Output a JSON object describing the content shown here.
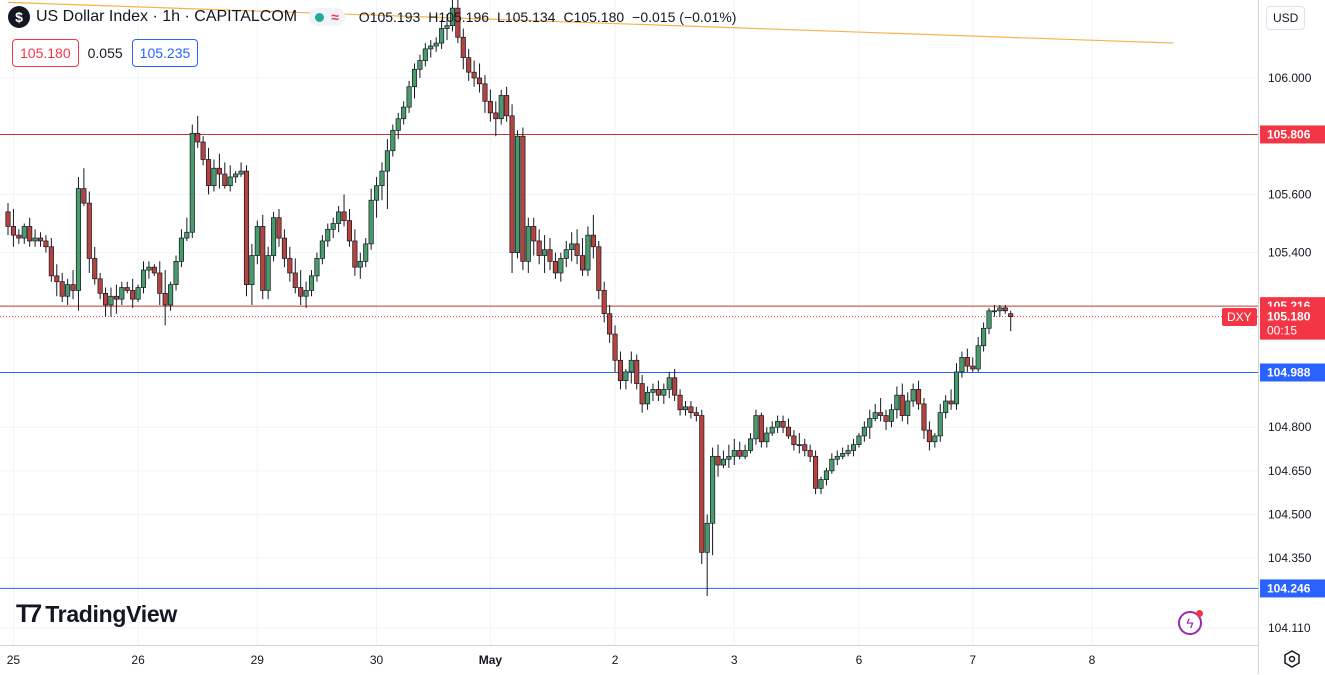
{
  "header": {
    "symbol_icon": "$",
    "title": "US Dollar Index · 1h · CAPITALCOM",
    "ohlc": [
      {
        "k": "O",
        "v": "105.193"
      },
      {
        "k": "H",
        "v": "105.196"
      },
      {
        "k": "L",
        "v": "105.134"
      },
      {
        "k": "C",
        "v": "105.180"
      },
      {
        "k": "",
        "v": "−0.015 (−0.01%)"
      }
    ],
    "status_icons": [
      "market-open-dot-icon",
      "wave-icon"
    ]
  },
  "quote": {
    "bid": "105.180",
    "spread": "0.055",
    "ask": "105.235"
  },
  "currency": "USD",
  "logo_text": "TradingView",
  "symbol_tag": "DXY",
  "colors": {
    "up": "#22ab94",
    "down": "#f23645",
    "candle_up_fill": "#4a9b6b",
    "candle_down_fill": "#b5443f",
    "blue_line": "#2962ff",
    "red_line": "#c0392b",
    "trend": "#f7b24f"
  },
  "chart_data": {
    "type": "candlestick",
    "title": "US Dollar Index · 1h · CAPITALCOM",
    "y_ticks": [
      "106.000",
      "105.600",
      "105.400",
      "104.800",
      "104.650",
      "104.500",
      "104.350",
      "104.110"
    ],
    "x_ticks": [
      {
        "label": "25",
        "idx": 1
      },
      {
        "label": "26",
        "idx": 24
      },
      {
        "label": "29",
        "idx": 46
      },
      {
        "label": "30",
        "idx": 68
      },
      {
        "label": "May",
        "idx": 89
      },
      {
        "label": "2",
        "idx": 112
      },
      {
        "label": "3",
        "idx": 134
      },
      {
        "label": "6",
        "idx": 157
      },
      {
        "label": "7",
        "idx": 178
      },
      {
        "label": "8",
        "idx": 200
      }
    ],
    "horizontal_lines": [
      {
        "price": 105.806,
        "label": "105.806",
        "color": "#c0392b"
      },
      {
        "price": 105.216,
        "label": "105.216",
        "color": "#c0392b"
      },
      {
        "price": 104.988,
        "label": "104.988",
        "color": "#2962ff"
      },
      {
        "price": 104.246,
        "label": "104.246",
        "color": "#2962ff"
      }
    ],
    "current_price": {
      "price": 105.18,
      "label": "105.180",
      "countdown": "00:15"
    },
    "trendline": {
      "from": {
        "idx": 0,
        "price": 106.26
      },
      "to": {
        "idx": 215,
        "price": 106.12
      }
    },
    "candles": [
      [
        105.54,
        105.57,
        105.46,
        105.49
      ],
      [
        105.49,
        105.55,
        105.42,
        105.46
      ],
      [
        105.46,
        105.48,
        105.43,
        105.45
      ],
      [
        105.45,
        105.5,
        105.43,
        105.49
      ],
      [
        105.49,
        105.52,
        105.42,
        105.44
      ],
      [
        105.44,
        105.48,
        105.42,
        105.45
      ],
      [
        105.45,
        105.47,
        105.42,
        105.44
      ],
      [
        105.44,
        105.46,
        105.4,
        105.42
      ],
      [
        105.42,
        105.45,
        105.3,
        105.32
      ],
      [
        105.32,
        105.36,
        105.25,
        105.3
      ],
      [
        105.3,
        105.33,
        105.23,
        105.25
      ],
      [
        105.25,
        105.31,
        105.22,
        105.29
      ],
      [
        105.29,
        105.34,
        105.24,
        105.27
      ],
      [
        105.27,
        105.66,
        105.2,
        105.62
      ],
      [
        105.62,
        105.69,
        105.56,
        105.57
      ],
      [
        105.57,
        105.61,
        105.33,
        105.38
      ],
      [
        105.38,
        105.42,
        105.29,
        105.31
      ],
      [
        105.31,
        105.33,
        105.24,
        105.26
      ],
      [
        105.26,
        105.28,
        105.18,
        105.22
      ],
      [
        105.22,
        105.28,
        105.18,
        105.25
      ],
      [
        105.25,
        105.29,
        105.19,
        105.24
      ],
      [
        105.24,
        105.3,
        105.22,
        105.28
      ],
      [
        105.28,
        105.3,
        105.26,
        105.27
      ],
      [
        105.27,
        105.31,
        105.21,
        105.24
      ],
      [
        105.24,
        105.29,
        105.23,
        105.28
      ],
      [
        105.28,
        105.37,
        105.26,
        105.34
      ],
      [
        105.34,
        105.37,
        105.31,
        105.35
      ],
      [
        105.35,
        105.36,
        105.32,
        105.33
      ],
      [
        105.33,
        105.37,
        105.22,
        105.26
      ],
      [
        105.26,
        105.34,
        105.15,
        105.22
      ],
      [
        105.22,
        105.3,
        105.2,
        105.29
      ],
      [
        105.29,
        105.39,
        105.27,
        105.37
      ],
      [
        105.37,
        105.48,
        105.35,
        105.45
      ],
      [
        105.45,
        105.52,
        105.44,
        105.47
      ],
      [
        105.47,
        105.84,
        105.45,
        105.81
      ],
      [
        105.81,
        105.87,
        105.76,
        105.78
      ],
      [
        105.78,
        105.8,
        105.7,
        105.72
      ],
      [
        105.72,
        105.76,
        105.6,
        105.63
      ],
      [
        105.63,
        105.72,
        105.61,
        105.69
      ],
      [
        105.69,
        105.74,
        105.62,
        105.67
      ],
      [
        105.67,
        105.71,
        105.62,
        105.63
      ],
      [
        105.63,
        105.7,
        105.61,
        105.66
      ],
      [
        105.66,
        105.68,
        105.64,
        105.67
      ],
      [
        105.67,
        105.71,
        105.66,
        105.68
      ],
      [
        105.68,
        105.7,
        105.25,
        105.29
      ],
      [
        105.29,
        105.43,
        105.22,
        105.39
      ],
      [
        105.39,
        105.51,
        105.36,
        105.49
      ],
      [
        105.49,
        105.53,
        105.24,
        105.27
      ],
      [
        105.27,
        105.42,
        105.24,
        105.39
      ],
      [
        105.39,
        105.54,
        105.37,
        105.52
      ],
      [
        105.52,
        105.55,
        105.42,
        105.45
      ],
      [
        105.45,
        105.48,
        105.35,
        105.38
      ],
      [
        105.38,
        105.42,
        105.3,
        105.33
      ],
      [
        105.33,
        105.38,
        105.26,
        105.28
      ],
      [
        105.28,
        105.34,
        105.22,
        105.25
      ],
      [
        105.25,
        105.3,
        105.21,
        105.27
      ],
      [
        105.27,
        105.34,
        105.25,
        105.32
      ],
      [
        105.32,
        105.4,
        105.3,
        105.38
      ],
      [
        105.38,
        105.46,
        105.36,
        105.44
      ],
      [
        105.44,
        105.5,
        105.42,
        105.48
      ],
      [
        105.48,
        105.52,
        105.45,
        105.5
      ],
      [
        105.5,
        105.56,
        105.47,
        105.54
      ],
      [
        105.54,
        105.6,
        105.49,
        105.51
      ],
      [
        105.51,
        105.55,
        105.42,
        105.44
      ],
      [
        105.44,
        105.48,
        105.32,
        105.35
      ],
      [
        105.35,
        105.4,
        105.31,
        105.37
      ],
      [
        105.37,
        105.45,
        105.35,
        105.43
      ],
      [
        105.43,
        105.62,
        105.41,
        105.58
      ],
      [
        105.58,
        105.66,
        105.52,
        105.63
      ],
      [
        105.63,
        105.71,
        105.58,
        105.68
      ],
      [
        105.68,
        105.79,
        105.55,
        105.75
      ],
      [
        105.75,
        105.84,
        105.73,
        105.82
      ],
      [
        105.82,
        105.88,
        105.79,
        105.86
      ],
      [
        105.86,
        105.92,
        105.84,
        105.9
      ],
      [
        105.9,
        105.99,
        105.88,
        105.97
      ],
      [
        105.97,
        106.05,
        105.93,
        106.03
      ],
      [
        106.03,
        106.08,
        106.0,
        106.06
      ],
      [
        106.06,
        106.12,
        106.04,
        106.1
      ],
      [
        106.1,
        106.13,
        106.07,
        106.11
      ],
      [
        106.11,
        106.14,
        106.09,
        106.12
      ],
      [
        106.12,
        106.2,
        106.1,
        106.17
      ],
      [
        106.17,
        106.22,
        106.13,
        106.18
      ],
      [
        106.18,
        106.27,
        106.16,
        106.24
      ],
      [
        106.24,
        106.28,
        106.12,
        106.14
      ],
      [
        106.14,
        106.17,
        106.03,
        106.07
      ],
      [
        106.07,
        106.1,
        105.99,
        106.02
      ],
      [
        106.02,
        106.06,
        105.97,
        106.0
      ],
      [
        106.0,
        106.05,
        105.95,
        105.98
      ],
      [
        105.98,
        106.01,
        105.88,
        105.92
      ],
      [
        105.92,
        105.96,
        105.85,
        105.88
      ],
      [
        105.88,
        105.92,
        105.8,
        105.86
      ],
      [
        105.86,
        105.96,
        105.84,
        105.94
      ],
      [
        105.94,
        105.97,
        105.85,
        105.87
      ],
      [
        105.87,
        105.91,
        105.33,
        105.4
      ],
      [
        105.4,
        105.82,
        105.38,
        105.8
      ],
      [
        105.8,
        105.83,
        105.34,
        105.37
      ],
      [
        105.37,
        105.52,
        105.33,
        105.49
      ],
      [
        105.49,
        105.52,
        105.39,
        105.44
      ],
      [
        105.44,
        105.48,
        105.36,
        105.39
      ],
      [
        105.39,
        105.46,
        105.33,
        105.41
      ],
      [
        105.41,
        105.45,
        105.34,
        105.37
      ],
      [
        105.37,
        105.4,
        105.31,
        105.33
      ],
      [
        105.33,
        105.4,
        105.3,
        105.38
      ],
      [
        105.38,
        105.44,
        105.35,
        105.41
      ],
      [
        105.41,
        105.47,
        105.37,
        105.43
      ],
      [
        105.43,
        105.48,
        105.36,
        105.39
      ],
      [
        105.39,
        105.45,
        105.32,
        105.34
      ],
      [
        105.34,
        105.49,
        105.32,
        105.46
      ],
      [
        105.46,
        105.53,
        105.38,
        105.42
      ]
    ],
    "candles_b": [
      [
        105.42,
        105.44,
        105.24,
        105.27
      ],
      [
        105.27,
        105.3,
        105.16,
        105.19
      ],
      [
        105.19,
        105.22,
        105.09,
        105.12
      ],
      [
        105.12,
        105.15,
        104.99,
        105.03
      ],
      [
        105.03,
        105.06,
        104.93,
        104.96
      ],
      [
        104.96,
        105.0,
        104.93,
        104.99
      ],
      [
        104.99,
        105.06,
        104.95,
        105.03
      ],
      [
        105.03,
        105.05,
        104.93,
        104.95
      ],
      [
        104.95,
        104.98,
        104.85,
        104.88
      ],
      [
        104.88,
        104.94,
        104.86,
        104.92
      ],
      [
        104.92,
        104.95,
        104.89,
        104.93
      ],
      [
        104.93,
        104.96,
        104.89,
        104.91
      ],
      [
        104.91,
        104.95,
        104.88,
        104.93
      ],
      [
        104.93,
        104.99,
        104.9,
        104.97
      ],
      [
        104.97,
        105.0,
        104.89,
        104.91
      ],
      [
        104.91,
        104.93,
        104.84,
        104.86
      ],
      [
        104.86,
        104.89,
        104.84,
        104.87
      ],
      [
        104.87,
        104.89,
        104.83,
        104.85
      ],
      [
        104.85,
        104.87,
        104.82,
        104.84
      ],
      [
        104.84,
        104.86,
        104.33,
        104.37
      ],
      [
        104.37,
        104.5,
        104.22,
        104.47
      ],
      [
        104.47,
        104.73,
        104.36,
        104.7
      ],
      [
        104.7,
        104.74,
        104.63,
        104.67
      ],
      [
        104.67,
        104.72,
        104.66,
        104.69
      ],
      [
        104.69,
        104.74,
        104.66,
        104.7
      ],
      [
        104.7,
        104.76,
        104.67,
        104.72
      ],
      [
        104.72,
        104.75,
        104.69,
        104.7
      ],
      [
        104.7,
        104.74,
        104.69,
        104.72
      ],
      [
        104.72,
        104.78,
        104.71,
        104.76
      ],
      [
        104.76,
        104.86,
        104.74,
        104.84
      ],
      [
        104.84,
        104.85,
        104.73,
        104.75
      ],
      [
        104.75,
        104.8,
        104.73,
        104.78
      ],
      [
        104.78,
        104.82,
        104.77,
        104.8
      ],
      [
        104.8,
        104.84,
        104.78,
        104.82
      ],
      [
        104.82,
        104.84,
        104.78,
        104.8
      ],
      [
        104.8,
        104.83,
        104.76,
        104.77
      ],
      [
        104.77,
        104.79,
        104.72,
        104.74
      ],
      [
        104.74,
        104.78,
        104.71,
        104.74
      ],
      [
        104.74,
        104.76,
        104.7,
        104.72
      ],
      [
        104.72,
        104.74,
        104.68,
        104.7
      ],
      [
        104.7,
        104.72,
        104.57,
        104.59
      ],
      [
        104.59,
        104.63,
        104.57,
        104.62
      ],
      [
        104.62,
        104.66,
        104.6,
        104.65
      ],
      [
        104.65,
        104.71,
        104.64,
        104.69
      ],
      [
        104.69,
        104.72,
        104.67,
        104.7
      ],
      [
        104.7,
        104.73,
        104.69,
        104.71
      ],
      [
        104.71,
        104.74,
        104.7,
        104.72
      ],
      [
        104.72,
        104.76,
        104.7,
        104.74
      ],
      [
        104.74,
        104.78,
        104.73,
        104.77
      ],
      [
        104.77,
        104.82,
        104.75,
        104.8
      ],
      [
        104.8,
        104.86,
        104.76,
        104.83
      ],
      [
        104.83,
        104.88,
        104.82,
        104.85
      ],
      [
        104.85,
        104.9,
        104.82,
        104.84
      ],
      [
        104.84,
        104.86,
        104.79,
        104.82
      ],
      [
        104.82,
        104.88,
        104.8,
        104.86
      ],
      [
        104.86,
        104.94,
        104.83,
        104.91
      ],
      [
        104.91,
        104.95,
        104.82,
        104.84
      ],
      [
        104.84,
        104.92,
        104.81,
        104.89
      ],
      [
        104.89,
        104.95,
        104.87,
        104.93
      ],
      [
        104.93,
        104.96,
        104.86,
        104.88
      ],
      [
        104.88,
        104.9,
        104.76,
        104.79
      ],
      [
        104.79,
        104.82,
        104.72,
        104.75
      ],
      [
        104.75,
        104.78,
        104.73,
        104.77
      ],
      [
        104.77,
        104.88,
        104.75,
        104.85
      ],
      [
        104.85,
        104.91,
        104.83,
        104.89
      ],
      [
        104.89,
        104.93,
        104.86,
        104.88
      ],
      [
        104.88,
        105.02,
        104.86,
        104.99
      ],
      [
        104.99,
        105.06,
        104.97,
        105.04
      ],
      [
        105.04,
        105.07,
        104.99,
        105.01
      ],
      [
        105.01,
        105.04,
        104.99,
        105.0
      ],
      [
        105.0,
        105.11,
        104.99,
        105.08
      ],
      [
        105.08,
        105.16,
        105.06,
        105.14
      ],
      [
        105.14,
        105.21,
        105.12,
        105.2
      ],
      [
        105.2,
        105.22,
        105.18,
        105.2
      ],
      [
        105.2,
        105.22,
        105.18,
        105.21
      ],
      [
        105.21,
        105.22,
        105.19,
        105.2
      ],
      [
        105.19,
        105.2,
        105.13,
        105.18
      ]
    ]
  }
}
